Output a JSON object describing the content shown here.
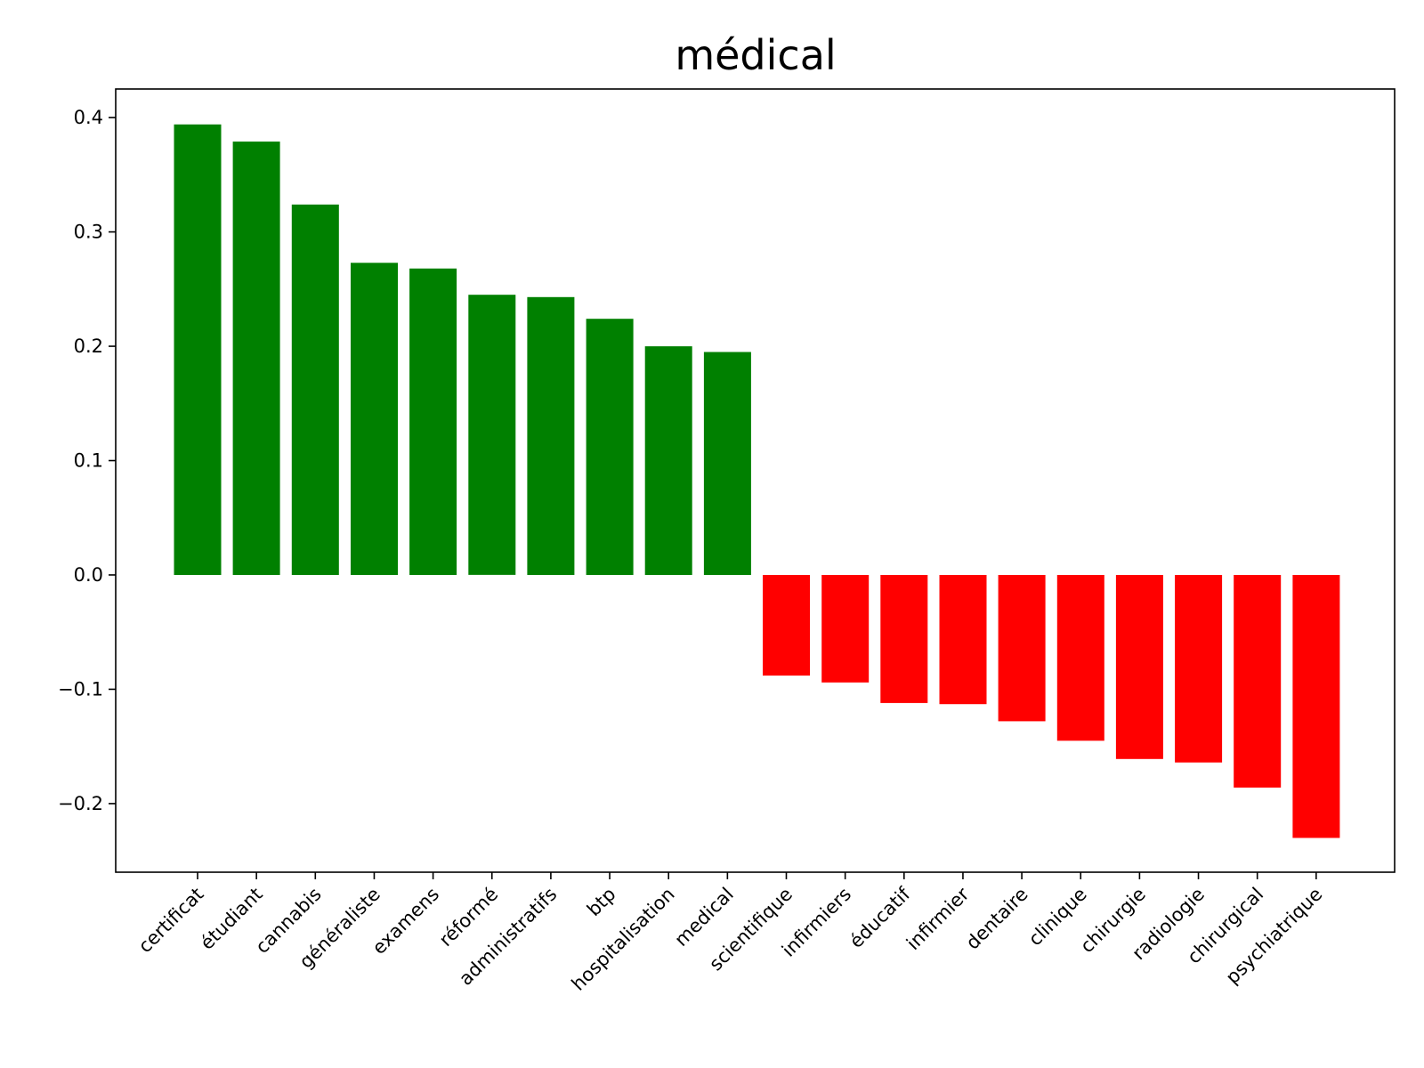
{
  "chart_data": {
    "type": "bar",
    "title": "médical",
    "xlabel": "",
    "ylabel": "",
    "ylim": [
      -0.26,
      0.425
    ],
    "yticks": [
      0.4,
      0.3,
      0.2,
      0.1,
      0.0,
      -0.1,
      -0.2
    ],
    "ytick_labels": [
      "0.4",
      "0.3",
      "0.2",
      "0.1",
      "0.0",
      "−0.1",
      "−0.2"
    ],
    "grid": false,
    "categories": [
      "certificat",
      "étudiant",
      "cannabis",
      "généraliste",
      "examens",
      "réformé",
      "administratifs",
      "btp",
      "hospitalisation",
      "medical",
      "scientifique",
      "infirmiers",
      "éducatif",
      "infirmier",
      "dentaire",
      "clinique",
      "chirurgie",
      "radiologie",
      "chirurgical",
      "psychiatrique"
    ],
    "values": [
      0.394,
      0.379,
      0.324,
      0.273,
      0.268,
      0.245,
      0.243,
      0.224,
      0.2,
      0.195,
      -0.088,
      -0.094,
      -0.112,
      -0.113,
      -0.128,
      -0.145,
      -0.161,
      -0.164,
      -0.186,
      -0.23
    ],
    "colors": {
      "positive": "#008000",
      "negative": "#ff0000"
    }
  }
}
